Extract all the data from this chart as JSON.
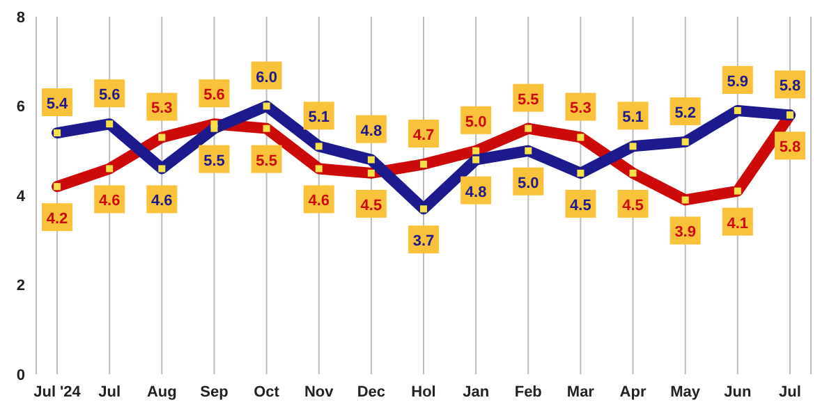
{
  "chart_data": {
    "type": "line",
    "categories": [
      "Jul '24",
      "Jul",
      "Aug",
      "Sep",
      "Oct",
      "Nov",
      "Dec",
      "Hol",
      "Jan",
      "Feb",
      "Mar",
      "Apr",
      "May",
      "Jun",
      "Jul"
    ],
    "series": [
      {
        "color": "#cc0a0a",
        "values": [
          4.2,
          4.6,
          5.3,
          5.6,
          5.5,
          4.6,
          4.5,
          4.7,
          5.0,
          5.5,
          5.3,
          4.5,
          3.9,
          4.1,
          5.8
        ],
        "value_labels": [
          "4.2",
          "4.6",
          "5.3",
          "5.6",
          "5.5",
          "4.6",
          "4.5",
          "4.7",
          "5.0",
          "5.5",
          "5.3",
          "4.5",
          "3.9",
          "4.1",
          "5.8"
        ]
      },
      {
        "color": "#1c1a8c",
        "values": [
          5.4,
          5.6,
          4.6,
          5.5,
          6.0,
          5.1,
          4.8,
          3.7,
          4.8,
          5.0,
          4.5,
          5.1,
          5.2,
          5.9,
          5.8
        ],
        "value_labels": [
          "5.4",
          "5.6",
          "4.6",
          "5.5",
          "6.0",
          "5.1",
          "4.8",
          "3.7",
          "4.8",
          "5.0",
          "4.5",
          "5.1",
          "5.2",
          "5.9",
          "5.8"
        ]
      }
    ],
    "ylim": [
      0,
      8
    ],
    "yticks": [
      0,
      2,
      4,
      6,
      8
    ],
    "grid": "x",
    "marker": "square",
    "line_style": "solid"
  }
}
